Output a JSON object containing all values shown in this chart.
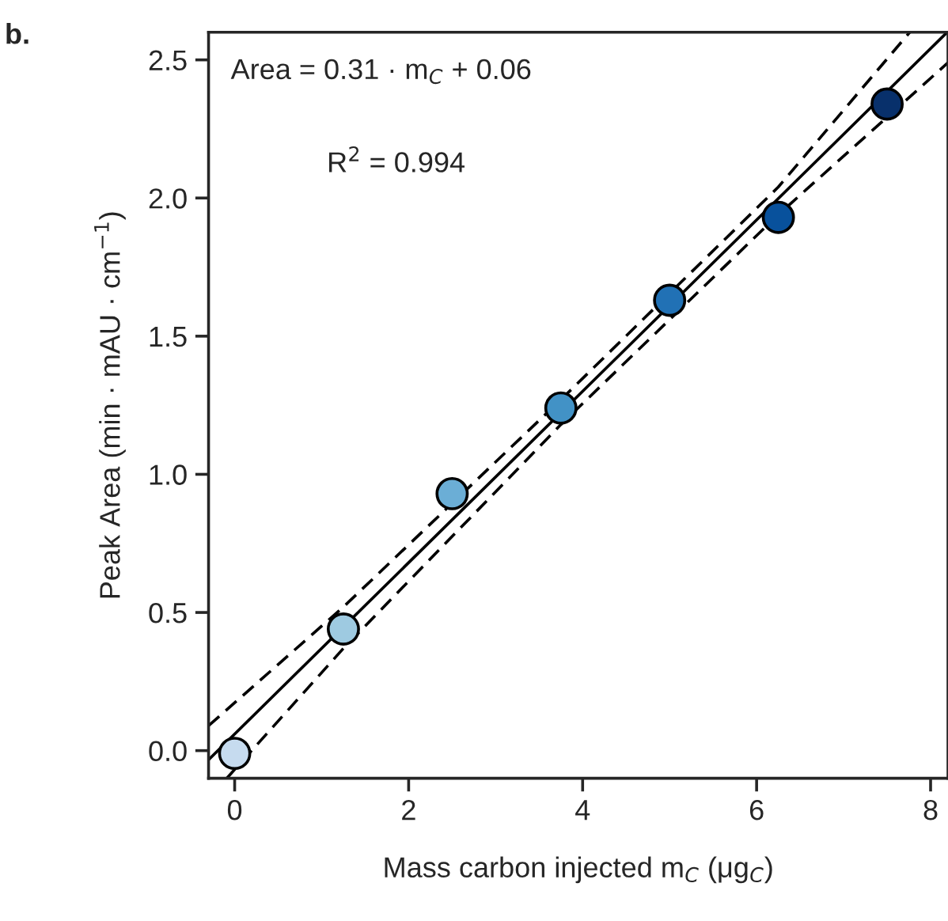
{
  "chart_data": {
    "type": "scatter",
    "xlabel": "Mass carbon injected m$_{C}$ (μg$_{C}$)",
    "ylabel": "Peak Area (min · mAU · cm$^{−1}$)",
    "annotations": [
      "b.",
      "Area = 0.31 · m$_{C}$ + 0.06",
      "R$^{2}$ = 0.994"
    ],
    "xlim": [
      -0.3,
      8.2
    ],
    "ylim": [
      -0.1,
      2.6
    ],
    "xticks": [
      0,
      2,
      4,
      6,
      8
    ],
    "yticks": [
      {
        "value": 0,
        "label": "0.0"
      },
      {
        "value": 0.5,
        "label": "0.5"
      },
      {
        "value": 1,
        "label": "1.0"
      },
      {
        "value": 1.5,
        "label": "1.5"
      },
      {
        "value": 2,
        "label": "2.0"
      },
      {
        "value": 2.5,
        "label": "2.5"
      }
    ],
    "grid": false,
    "legend": false,
    "series": [
      {
        "type": "line",
        "line_style": "solid",
        "color": "#000000",
        "x": [
          -0.3,
          8.19
        ],
        "values": [
          -0.033,
          2.6
        ]
      },
      {
        "type": "line",
        "line_style": "dashed",
        "color": "#000000",
        "x": [
          -0.3,
          1.25,
          3.75,
          6.25,
          7.76
        ],
        "values": [
          0.09,
          0.52,
          1.27,
          2.04,
          2.6
        ]
      },
      {
        "type": "line",
        "line_style": "dashed",
        "color": "#000000",
        "x": [
          -0.09,
          1.25,
          3.75,
          6.25,
          8.2
        ],
        "values": [
          -0.1,
          0.37,
          1.18,
          1.94,
          2.49
        ]
      },
      {
        "marker": "circle",
        "x": [
          0,
          1.25,
          2.5,
          3.75,
          5,
          6.25,
          7.5
        ],
        "values": [
          -0.01,
          0.44,
          0.93,
          1.24,
          1.63,
          1.93,
          2.34
        ],
        "colors": [
          "#c6dbef",
          "#9ecae1",
          "#6baed6",
          "#4292c6",
          "#2171b5",
          "#08519c",
          "#08306b"
        ]
      }
    ]
  }
}
